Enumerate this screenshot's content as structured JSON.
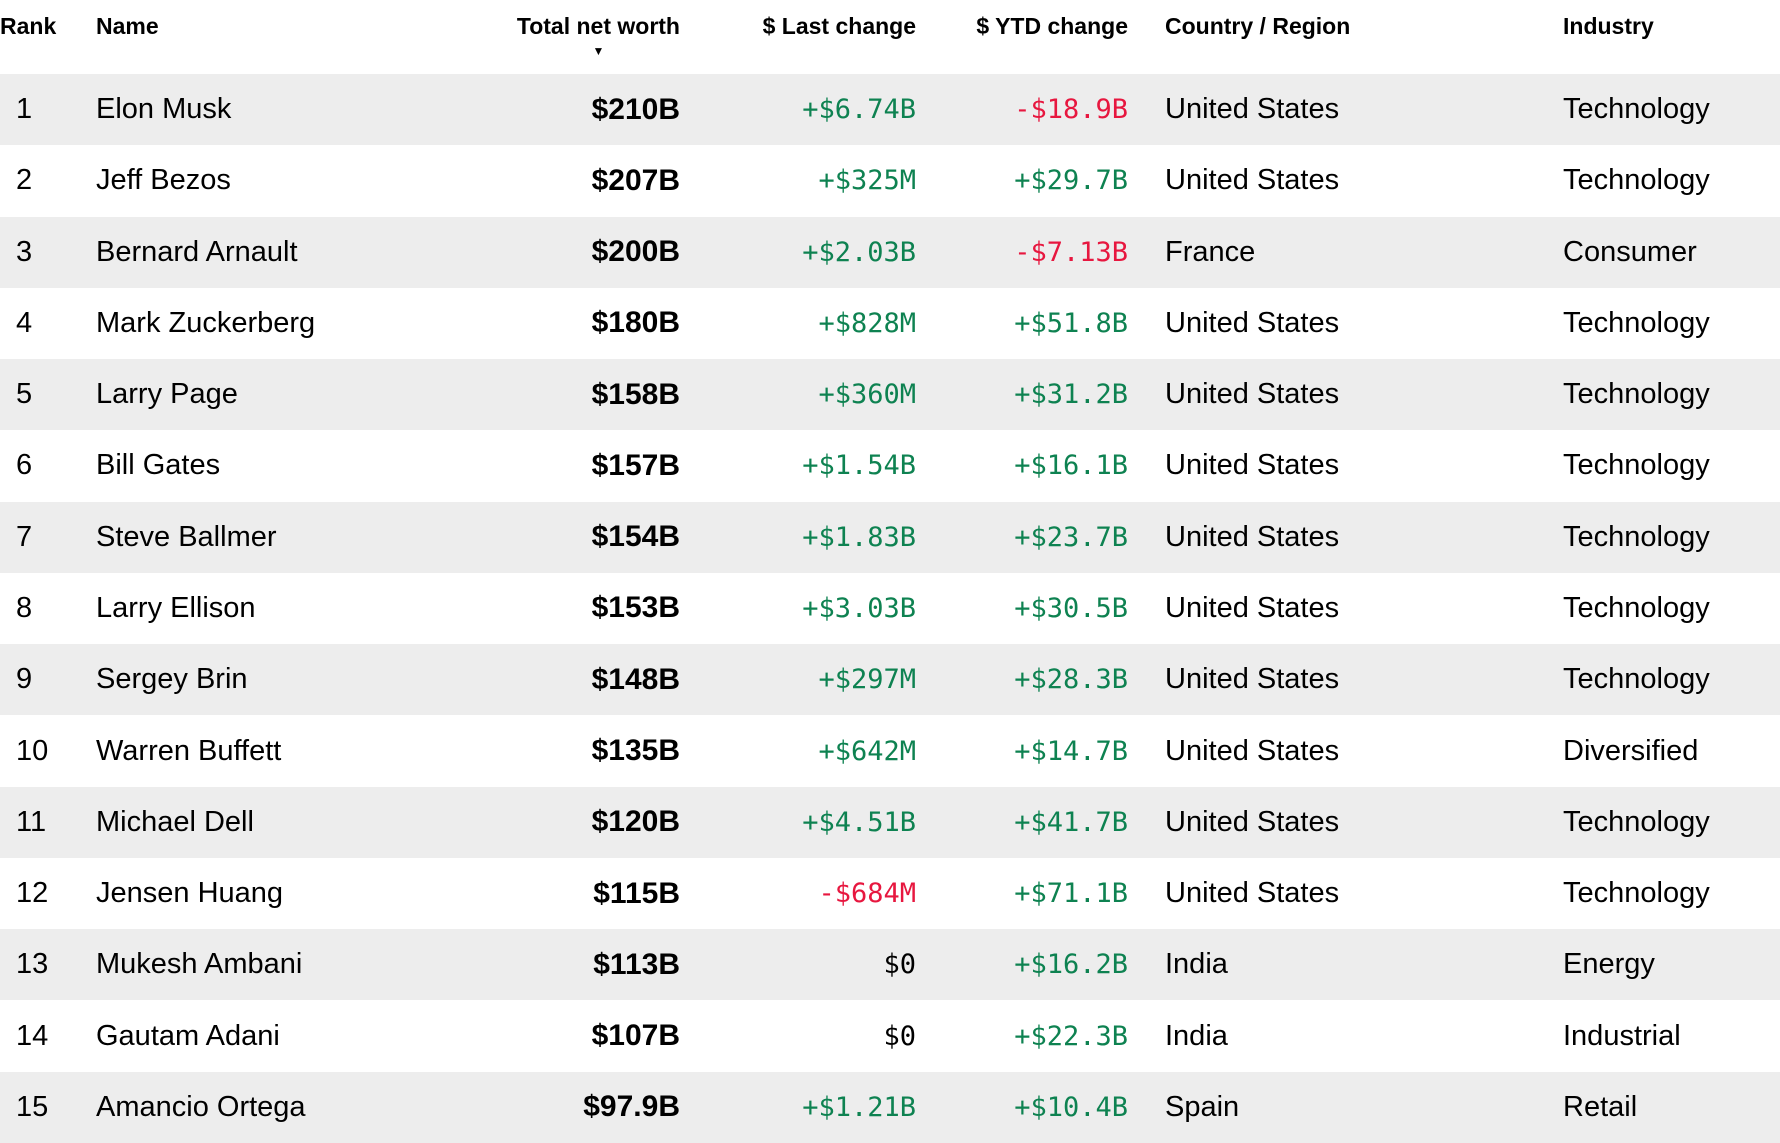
{
  "header": {
    "rank": "Rank",
    "name": "Name",
    "total_net_worth": "Total net worth",
    "last_change": "$ Last change",
    "ytd_change": "$ YTD change",
    "country": "Country / Region",
    "industry": "Industry",
    "sort_icon": "▼"
  },
  "colors": {
    "positive": "#0e8251",
    "negative": "#e7173f",
    "zero": "#000000",
    "row_stripe": "#ededed",
    "text": "#000000"
  },
  "rows": [
    {
      "rank": "1",
      "name": "Elon Musk",
      "total_net_worth": "$210B",
      "last_change": "+$6.74B",
      "ytd_change": "-$18.9B",
      "country": "United States",
      "industry": "Technology"
    },
    {
      "rank": "2",
      "name": "Jeff Bezos",
      "total_net_worth": "$207B",
      "last_change": "+$325M",
      "ytd_change": "+$29.7B",
      "country": "United States",
      "industry": "Technology"
    },
    {
      "rank": "3",
      "name": "Bernard Arnault",
      "total_net_worth": "$200B",
      "last_change": "+$2.03B",
      "ytd_change": "-$7.13B",
      "country": "France",
      "industry": "Consumer"
    },
    {
      "rank": "4",
      "name": "Mark Zuckerberg",
      "total_net_worth": "$180B",
      "last_change": "+$828M",
      "ytd_change": "+$51.8B",
      "country": "United States",
      "industry": "Technology"
    },
    {
      "rank": "5",
      "name": "Larry Page",
      "total_net_worth": "$158B",
      "last_change": "+$360M",
      "ytd_change": "+$31.2B",
      "country": "United States",
      "industry": "Technology"
    },
    {
      "rank": "6",
      "name": "Bill Gates",
      "total_net_worth": "$157B",
      "last_change": "+$1.54B",
      "ytd_change": "+$16.1B",
      "country": "United States",
      "industry": "Technology"
    },
    {
      "rank": "7",
      "name": "Steve Ballmer",
      "total_net_worth": "$154B",
      "last_change": "+$1.83B",
      "ytd_change": "+$23.7B",
      "country": "United States",
      "industry": "Technology"
    },
    {
      "rank": "8",
      "name": "Larry Ellison",
      "total_net_worth": "$153B",
      "last_change": "+$3.03B",
      "ytd_change": "+$30.5B",
      "country": "United States",
      "industry": "Technology"
    },
    {
      "rank": "9",
      "name": "Sergey Brin",
      "total_net_worth": "$148B",
      "last_change": "+$297M",
      "ytd_change": "+$28.3B",
      "country": "United States",
      "industry": "Technology"
    },
    {
      "rank": "10",
      "name": "Warren Buffett",
      "total_net_worth": "$135B",
      "last_change": "+$642M",
      "ytd_change": "+$14.7B",
      "country": "United States",
      "industry": "Diversified"
    },
    {
      "rank": "11",
      "name": "Michael Dell",
      "total_net_worth": "$120B",
      "last_change": "+$4.51B",
      "ytd_change": "+$41.7B",
      "country": "United States",
      "industry": "Technology"
    },
    {
      "rank": "12",
      "name": "Jensen Huang",
      "total_net_worth": "$115B",
      "last_change": "-$684M",
      "ytd_change": "+$71.1B",
      "country": "United States",
      "industry": "Technology"
    },
    {
      "rank": "13",
      "name": "Mukesh Ambani",
      "total_net_worth": "$113B",
      "last_change": "$0",
      "ytd_change": "+$16.2B",
      "country": "India",
      "industry": "Energy"
    },
    {
      "rank": "14",
      "name": "Gautam Adani",
      "total_net_worth": "$107B",
      "last_change": "$0",
      "ytd_change": "+$22.3B",
      "country": "India",
      "industry": "Industrial"
    },
    {
      "rank": "15",
      "name": "Amancio Ortega",
      "total_net_worth": "$97.9B",
      "last_change": "+$1.21B",
      "ytd_change": "+$10.4B",
      "country": "Spain",
      "industry": "Retail"
    }
  ]
}
